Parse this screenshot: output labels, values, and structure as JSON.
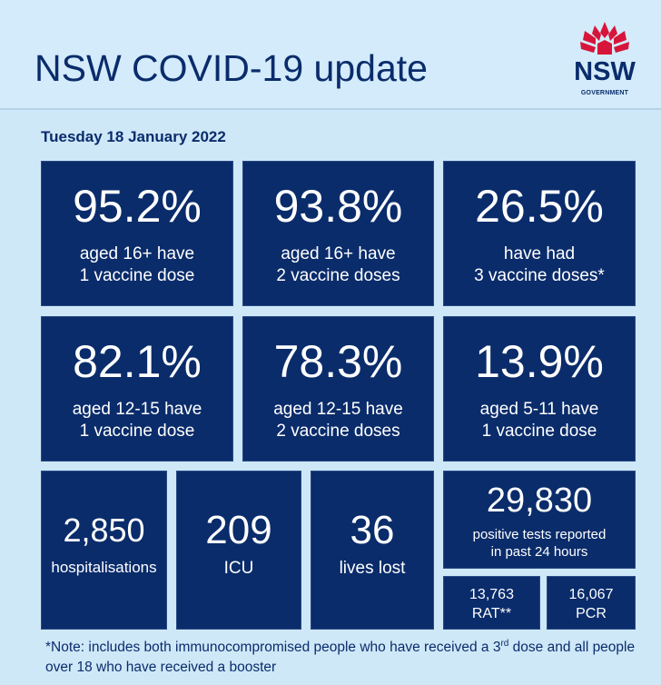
{
  "header": {
    "title": "NSW COVID-19 update",
    "logo": {
      "text": "NSW",
      "subtext": "GOVERNMENT",
      "colors": {
        "flower": "#d7153a",
        "text": "#0a2c6b"
      }
    }
  },
  "date": "Tuesday 18 January 2022",
  "stats": [
    {
      "value": "95.2%",
      "line1": "aged 16+ have",
      "line2": "1 vaccine dose"
    },
    {
      "value": "93.8%",
      "line1": "aged 16+ have",
      "line2": "2 vaccine doses"
    },
    {
      "value": "26.5%",
      "line1": "have had",
      "line2": "3 vaccine doses*"
    },
    {
      "value": "82.1%",
      "line1": "aged 12-15 have",
      "line2": "1 vaccine dose"
    },
    {
      "value": "78.3%",
      "line1": "aged 12-15 have",
      "line2": "2 vaccine doses"
    },
    {
      "value": "13.9%",
      "line1": "aged 5-11 have",
      "line2": "1 vaccine dose"
    }
  ],
  "hospital": {
    "value": "2,850",
    "label": "hospitalisations"
  },
  "icu": {
    "value": "209",
    "label": "ICU"
  },
  "deaths": {
    "value": "36",
    "label": "lives lost"
  },
  "cases": {
    "value": "29,830",
    "line1": "positive tests reported",
    "line2": "in past 24 hours"
  },
  "rat": {
    "value": "13,763",
    "label": "RAT**"
  },
  "pcr": {
    "value": "16,067",
    "label": "PCR"
  },
  "note": {
    "part1": "*Note: includes both immunocompromised people who have received a 3",
    "sup": "rd",
    "part2": " dose and all people over 18 who have received a booster"
  },
  "colors": {
    "tile": "#0a2c6b",
    "background": "#cfe8f8"
  }
}
